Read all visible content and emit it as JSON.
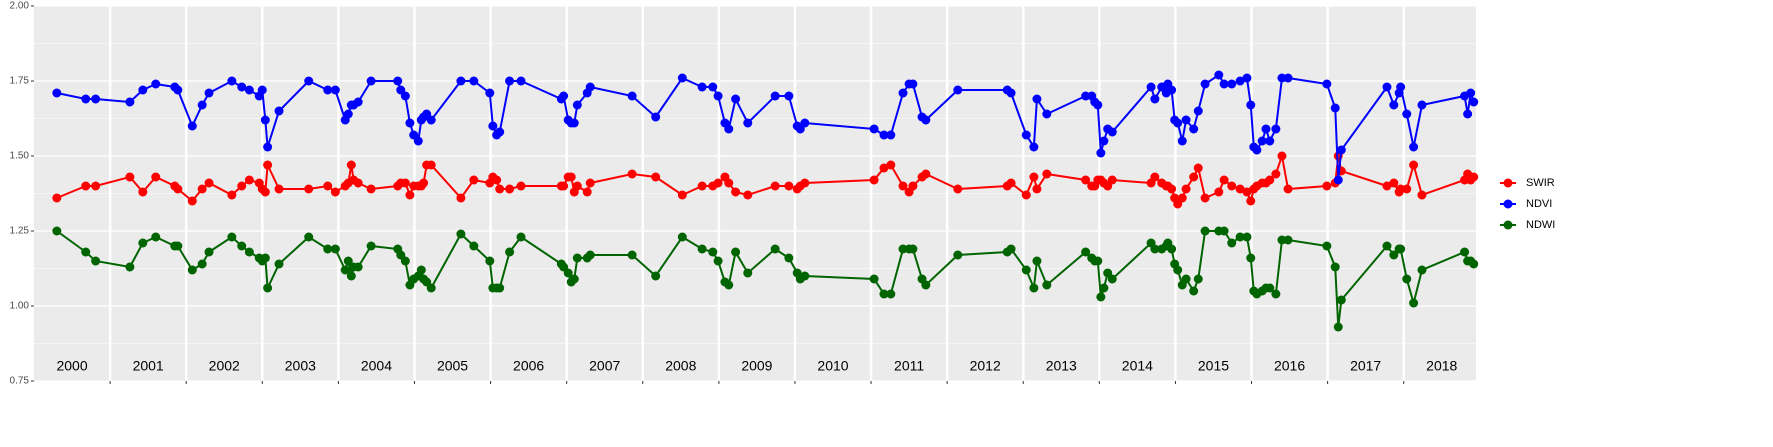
{
  "chart_data": {
    "type": "line",
    "x": [
      2000.3,
      2000.68,
      2000.81,
      2001.26,
      2001.43,
      2001.6,
      2001.85,
      2001.89,
      2002.08,
      2002.21,
      2002.3,
      2002.6,
      2002.73,
      2002.83,
      2002.96,
      2003.0,
      2003.04,
      2003.07,
      2003.22,
      2003.61,
      2003.86,
      2003.96,
      2004.09,
      2004.13,
      2004.17,
      2004.2,
      2004.26,
      2004.43,
      2004.78,
      2004.82,
      2004.88,
      2004.94,
      2004.99,
      2005.05,
      2005.09,
      2005.12,
      2005.16,
      2005.22,
      2005.61,
      2005.78,
      2005.99,
      2006.03,
      2006.08,
      2006.12,
      2006.25,
      2006.4,
      2006.93,
      2006.96,
      2007.02,
      2007.06,
      2007.1,
      2007.14,
      2007.27,
      2007.31,
      2007.86,
      2008.17,
      2008.52,
      2008.78,
      2008.92,
      2008.99,
      2009.08,
      2009.13,
      2009.22,
      2009.38,
      2009.74,
      2009.92,
      2010.03,
      2010.07,
      2010.13,
      2011.04,
      2011.17,
      2011.26,
      2011.42,
      2011.5,
      2011.55,
      2011.67,
      2011.72,
      2012.14,
      2012.79,
      2012.84,
      2013.04,
      2013.14,
      2013.18,
      2013.31,
      2013.82,
      2013.9,
      2013.94,
      2013.98,
      2014.02,
      2014.06,
      2014.11,
      2014.17,
      2014.68,
      2014.73,
      2014.82,
      2014.88,
      2014.9,
      2014.95,
      2014.99,
      2015.03,
      2015.09,
      2015.14,
      2015.24,
      2015.3,
      2015.39,
      2015.57,
      2015.64,
      2015.74,
      2015.85,
      2015.94,
      2015.99,
      2016.03,
      2016.07,
      2016.14,
      2016.19,
      2016.24,
      2016.32,
      2016.4,
      2016.48,
      2016.99,
      2017.1,
      2017.14,
      2017.18,
      2017.78,
      2017.87,
      2017.94,
      2017.96,
      2018.04,
      2018.13,
      2018.24,
      2018.8,
      2018.84,
      2018.88,
      2018.92
    ],
    "series": [
      {
        "name": "SWIR",
        "color": "#ff0000",
        "values": [
          1.36,
          1.4,
          1.4,
          1.43,
          1.38,
          1.43,
          1.4,
          1.39,
          1.35,
          1.39,
          1.41,
          1.37,
          1.4,
          1.42,
          1.41,
          1.39,
          1.38,
          1.47,
          1.39,
          1.39,
          1.4,
          1.38,
          1.4,
          1.41,
          1.47,
          1.42,
          1.41,
          1.39,
          1.4,
          1.41,
          1.41,
          1.37,
          1.4,
          1.4,
          1.4,
          1.41,
          1.47,
          1.47,
          1.36,
          1.42,
          1.41,
          1.43,
          1.42,
          1.39,
          1.39,
          1.4,
          1.4,
          1.4,
          1.43,
          1.43,
          1.38,
          1.4,
          1.38,
          1.41,
          1.44,
          1.43,
          1.37,
          1.4,
          1.4,
          1.41,
          1.43,
          1.41,
          1.38,
          1.37,
          1.4,
          1.4,
          1.39,
          1.4,
          1.41,
          1.42,
          1.46,
          1.47,
          1.4,
          1.38,
          1.4,
          1.43,
          1.44,
          1.39,
          1.4,
          1.41,
          1.37,
          1.43,
          1.39,
          1.44,
          1.42,
          1.4,
          1.4,
          1.42,
          1.42,
          1.41,
          1.4,
          1.42,
          1.41,
          1.43,
          1.41,
          1.4,
          1.4,
          1.39,
          1.36,
          1.34,
          1.36,
          1.39,
          1.43,
          1.46,
          1.36,
          1.38,
          1.42,
          1.4,
          1.39,
          1.38,
          1.35,
          1.39,
          1.4,
          1.41,
          1.41,
          1.42,
          1.44,
          1.5,
          1.39,
          1.4,
          1.41,
          1.5,
          1.45,
          1.4,
          1.41,
          1.38,
          1.39,
          1.39,
          1.47,
          1.37,
          1.42,
          1.44,
          1.42,
          1.43
        ]
      },
      {
        "name": "NDVI",
        "color": "#0000ff",
        "values": [
          1.71,
          1.69,
          1.69,
          1.68,
          1.72,
          1.74,
          1.73,
          1.72,
          1.6,
          1.67,
          1.71,
          1.75,
          1.73,
          1.72,
          1.7,
          1.72,
          1.62,
          1.53,
          1.65,
          1.75,
          1.72,
          1.72,
          1.62,
          1.64,
          1.67,
          1.67,
          1.68,
          1.75,
          1.75,
          1.72,
          1.7,
          1.61,
          1.57,
          1.55,
          1.62,
          1.63,
          1.64,
          1.62,
          1.75,
          1.75,
          1.71,
          1.6,
          1.57,
          1.58,
          1.75,
          1.75,
          1.69,
          1.7,
          1.62,
          1.61,
          1.61,
          1.67,
          1.71,
          1.73,
          1.7,
          1.63,
          1.76,
          1.73,
          1.73,
          1.7,
          1.61,
          1.59,
          1.69,
          1.61,
          1.7,
          1.7,
          1.6,
          1.59,
          1.61,
          1.59,
          1.57,
          1.57,
          1.71,
          1.74,
          1.74,
          1.63,
          1.62,
          1.72,
          1.72,
          1.71,
          1.57,
          1.53,
          1.69,
          1.64,
          1.7,
          1.7,
          1.68,
          1.67,
          1.51,
          1.55,
          1.59,
          1.58,
          1.73,
          1.69,
          1.73,
          1.71,
          1.74,
          1.72,
          1.62,
          1.61,
          1.55,
          1.62,
          1.59,
          1.65,
          1.74,
          1.77,
          1.74,
          1.74,
          1.75,
          1.76,
          1.67,
          1.53,
          1.52,
          1.55,
          1.59,
          1.55,
          1.59,
          1.76,
          1.76,
          1.74,
          1.66,
          1.42,
          1.52,
          1.73,
          1.67,
          1.71,
          1.73,
          1.64,
          1.53,
          1.67,
          1.7,
          1.64,
          1.71,
          1.68
        ]
      },
      {
        "name": "NDWI",
        "color": "#006400",
        "values": [
          1.25,
          1.18,
          1.15,
          1.13,
          1.21,
          1.23,
          1.2,
          1.2,
          1.12,
          1.14,
          1.18,
          1.23,
          1.2,
          1.18,
          1.16,
          1.15,
          1.16,
          1.06,
          1.14,
          1.23,
          1.19,
          1.19,
          1.12,
          1.15,
          1.1,
          1.13,
          1.13,
          1.2,
          1.19,
          1.17,
          1.15,
          1.07,
          1.09,
          1.1,
          1.12,
          1.09,
          1.08,
          1.06,
          1.24,
          1.2,
          1.15,
          1.06,
          1.06,
          1.06,
          1.18,
          1.23,
          1.14,
          1.13,
          1.11,
          1.08,
          1.09,
          1.16,
          1.16,
          1.17,
          1.17,
          1.1,
          1.23,
          1.19,
          1.18,
          1.15,
          1.08,
          1.07,
          1.18,
          1.11,
          1.19,
          1.16,
          1.11,
          1.09,
          1.1,
          1.09,
          1.04,
          1.04,
          1.19,
          1.19,
          1.19,
          1.09,
          1.07,
          1.17,
          1.18,
          1.19,
          1.12,
          1.06,
          1.15,
          1.07,
          1.18,
          1.16,
          1.15,
          1.15,
          1.03,
          1.06,
          1.11,
          1.09,
          1.21,
          1.19,
          1.19,
          1.2,
          1.21,
          1.19,
          1.14,
          1.12,
          1.07,
          1.09,
          1.05,
          1.09,
          1.25,
          1.25,
          1.25,
          1.21,
          1.23,
          1.23,
          1.16,
          1.05,
          1.04,
          1.05,
          1.06,
          1.06,
          1.04,
          1.22,
          1.22,
          1.2,
          1.13,
          0.93,
          1.02,
          1.2,
          1.17,
          1.19,
          1.19,
          1.09,
          1.01,
          1.12,
          1.18,
          1.15,
          1.15,
          1.14
        ]
      }
    ],
    "x_labels": [
      {
        "value": 2000,
        "label": "2000"
      },
      {
        "value": 2001,
        "label": "2001"
      },
      {
        "value": 2002,
        "label": "2002"
      },
      {
        "value": 2003,
        "label": "2003"
      },
      {
        "value": 2004,
        "label": "2004"
      },
      {
        "value": 2005,
        "label": "2005"
      },
      {
        "value": 2006,
        "label": "2006"
      },
      {
        "value": 2007,
        "label": "2007"
      },
      {
        "value": 2008,
        "label": "2008"
      },
      {
        "value": 2009,
        "label": "2009"
      },
      {
        "value": 2010,
        "label": "2010"
      },
      {
        "value": 2011,
        "label": "2011"
      },
      {
        "value": 2012,
        "label": "2012"
      },
      {
        "value": 2013,
        "label": "2013"
      },
      {
        "value": 2014,
        "label": "2014"
      },
      {
        "value": 2015,
        "label": "2015"
      },
      {
        "value": 2016,
        "label": "2016"
      },
      {
        "value": 2017,
        "label": "2017"
      },
      {
        "value": 2018,
        "label": "2018"
      }
    ],
    "xlim": [
      2000,
      2018.95
    ],
    "ylim": [
      0.75,
      2
    ],
    "yticks": [
      0.75,
      {
        "value": 1,
        "label": "1.00"
      },
      1.25,
      {
        "value": 1.5,
        "label": "1.50"
      },
      1.75,
      {
        "value": 2,
        "label": "2.00"
      }
    ],
    "grid": true,
    "legend": "right"
  }
}
